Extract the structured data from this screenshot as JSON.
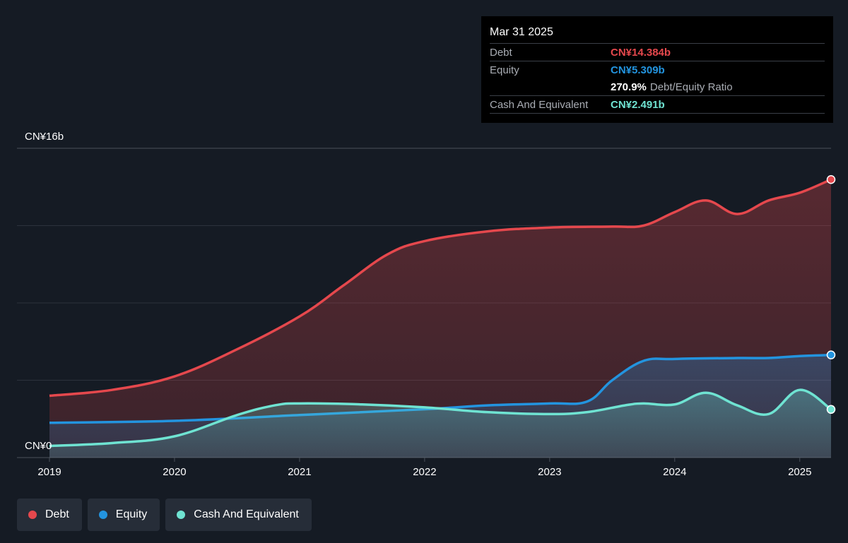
{
  "tooltip": {
    "date": "Mar 31 2025",
    "debt_label": "Debt",
    "debt_value": "CN¥14.384b",
    "equity_label": "Equity",
    "equity_value": "CN¥5.309b",
    "ratio_value": "270.9%",
    "ratio_label": "Debt/Equity Ratio",
    "cash_label": "Cash And Equivalent",
    "cash_value": "CN¥2.491b"
  },
  "legend": [
    {
      "label": "Debt",
      "color": "#e5484d"
    },
    {
      "label": "Equity",
      "color": "#2394df"
    },
    {
      "label": "Cash And Equivalent",
      "color": "#6fe3d2"
    }
  ],
  "chart_data": {
    "type": "area",
    "y_top_label": "CN¥16b",
    "y_bottom_label": "CN¥0",
    "ylim": [
      0,
      16
    ],
    "xlim": [
      2019.0,
      2025.25
    ],
    "x_ticks": [
      "2019",
      "2020",
      "2021",
      "2022",
      "2023",
      "2024",
      "2025"
    ],
    "series": [
      {
        "name": "Debt",
        "color": "#e5484d",
        "x": [
          2019.0,
          2019.5,
          2020.0,
          2020.5,
          2021.0,
          2021.35,
          2021.7,
          2022.0,
          2022.5,
          2023.0,
          2023.5,
          2023.75,
          2024.0,
          2024.25,
          2024.5,
          2024.75,
          2025.0,
          2025.25
        ],
        "y": [
          3.2,
          3.5,
          4.2,
          5.6,
          7.3,
          8.9,
          10.5,
          11.2,
          11.7,
          11.9,
          11.95,
          12.0,
          12.7,
          13.3,
          12.6,
          13.3,
          13.7,
          14.384
        ]
      },
      {
        "name": "Equity",
        "color": "#2394df",
        "x": [
          2019.0,
          2020.0,
          2021.0,
          2022.0,
          2022.5,
          2023.0,
          2023.3,
          2023.5,
          2023.75,
          2024.0,
          2024.5,
          2024.75,
          2025.0,
          2025.25
        ],
        "y": [
          1.8,
          1.9,
          2.2,
          2.5,
          2.7,
          2.8,
          2.9,
          4.0,
          5.0,
          5.1,
          5.15,
          5.15,
          5.25,
          5.309
        ]
      },
      {
        "name": "Cash And Equivalent",
        "color": "#6fe3d2",
        "x": [
          2019.0,
          2019.5,
          2020.0,
          2020.5,
          2020.8,
          2021.0,
          2021.5,
          2022.0,
          2022.5,
          2023.0,
          2023.3,
          2023.6,
          2023.75,
          2024.0,
          2024.25,
          2024.5,
          2024.75,
          2025.0,
          2025.25
        ],
        "y": [
          0.6,
          0.75,
          1.1,
          2.2,
          2.7,
          2.8,
          2.75,
          2.6,
          2.35,
          2.25,
          2.35,
          2.7,
          2.8,
          2.75,
          3.35,
          2.7,
          2.25,
          3.5,
          2.491
        ]
      }
    ]
  }
}
